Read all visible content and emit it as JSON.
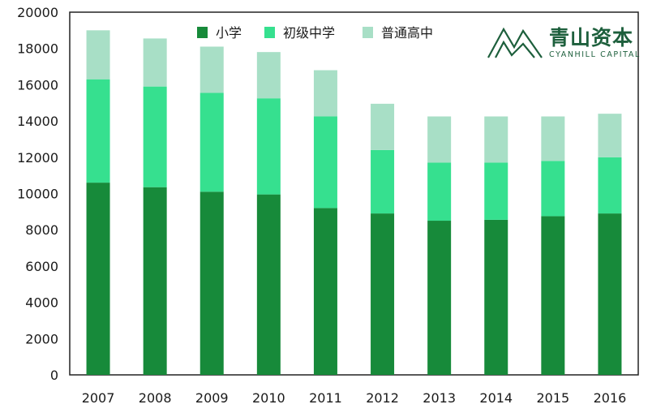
{
  "chart_data": {
    "type": "bar",
    "stacked": true,
    "categories": [
      "2007",
      "2008",
      "2009",
      "2010",
      "2011",
      "2012",
      "2013",
      "2014",
      "2015",
      "2016"
    ],
    "series": [
      {
        "name": "小学",
        "color": "#178a3a",
        "values": [
          10600,
          10350,
          10100,
          9950,
          9200,
          8900,
          8500,
          8550,
          8750,
          8900
        ]
      },
      {
        "name": "初级中学",
        "color": "#36e08f",
        "values": [
          5700,
          5550,
          5450,
          5300,
          5050,
          3500,
          3200,
          3150,
          3050,
          3100
        ]
      },
      {
        "name": "普通高中",
        "color": "#a8dfc6",
        "values": [
          2700,
          2650,
          2550,
          2550,
          2550,
          2550,
          2550,
          2550,
          2450,
          2400
        ]
      }
    ],
    "y_ticks": [
      "0",
      "2000",
      "4000",
      "6000",
      "8000",
      "10000",
      "12000",
      "14000",
      "16000",
      "18000",
      "20000"
    ],
    "ylim": [
      0,
      20000
    ],
    "grid": false,
    "legend_position": "top-center"
  },
  "logo": {
    "name_cn": "青山资本",
    "name_en": "CYANHILL CAPITAL"
  }
}
